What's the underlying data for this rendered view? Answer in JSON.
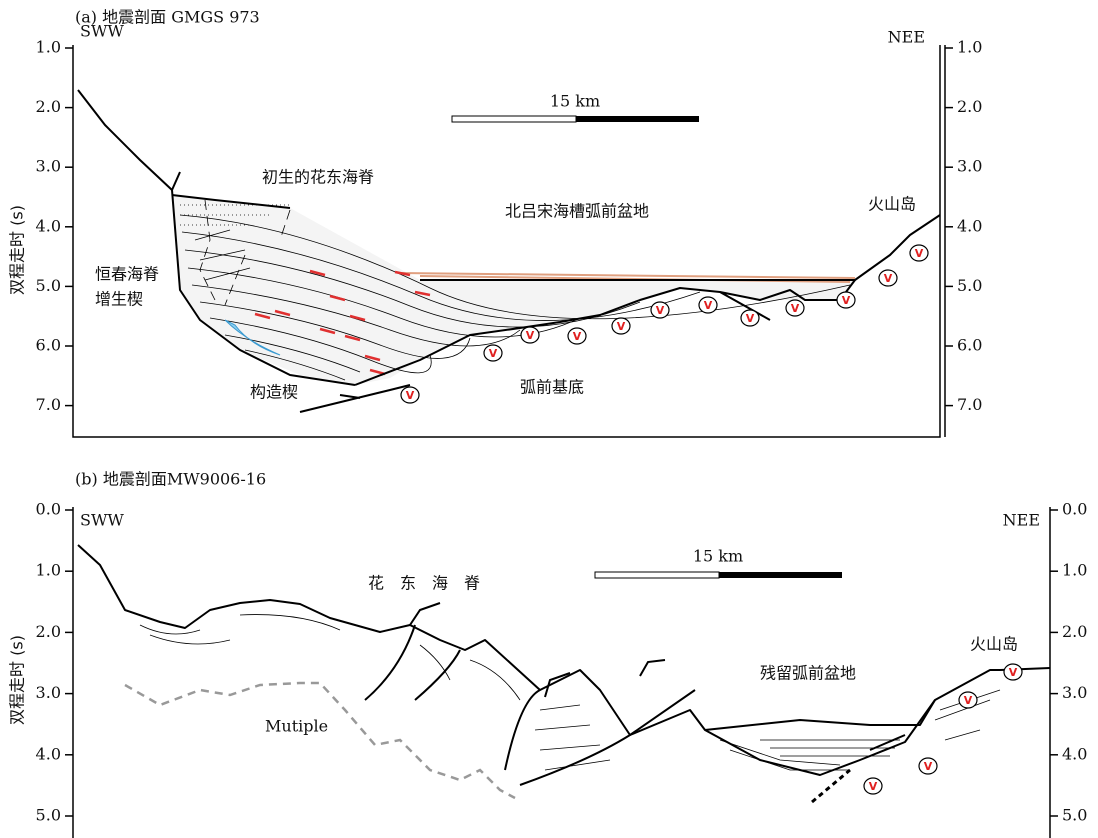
{
  "panels": [
    {
      "title": "(a) 地震剖面 GMGS 973",
      "y_axis_label": "双程走时 (s)",
      "ticks": [
        "1.0",
        "2.0",
        "3.0",
        "4.0",
        "5.0",
        "6.0",
        "7.0"
      ],
      "direction_left": "SWW",
      "direction_right": "NEE",
      "scale_bar": "15 km",
      "labels": [
        "初生的花东海脊",
        "北吕宋海槽弧前盆地",
        "火山岛",
        "恒春海脊",
        "增生楔",
        "构造楔",
        "弧前基底"
      ]
    },
    {
      "title": "(b) 地震剖面MW9006-16",
      "y_axis_label": "双程走时 (s)",
      "ticks": [
        "0.0",
        "1.0",
        "2.0",
        "3.0",
        "4.0",
        "5.0"
      ],
      "direction_left": "SWW",
      "direction_right": "NEE",
      "scale_bar": "15 km",
      "labels": [
        "花　东　海　脊",
        "残留弧前盆地",
        "火山岛",
        "Mutiple"
      ]
    }
  ],
  "volcano_symbol": "V"
}
